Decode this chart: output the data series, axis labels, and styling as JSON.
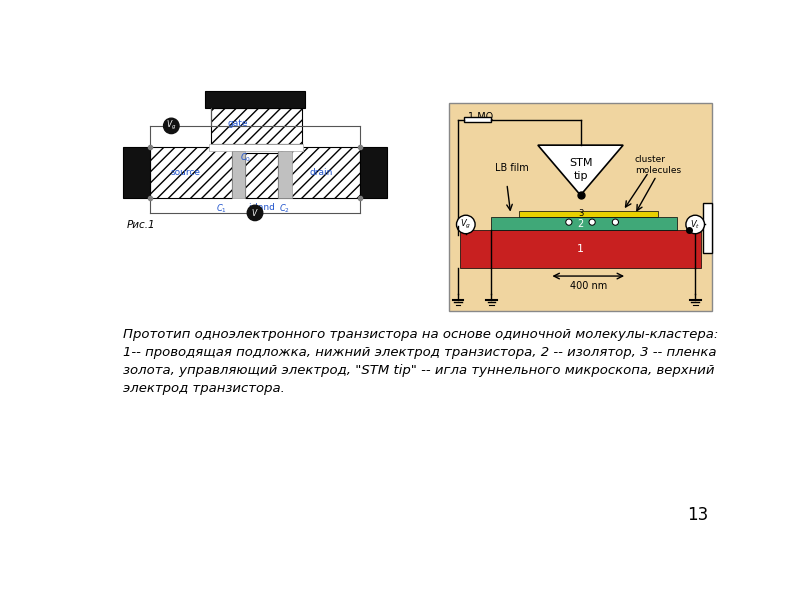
{
  "background_color": "#ffffff",
  "page_number": "13",
  "caption_text": "Прототип одноэлектронного транзистора на основе одиночной молекулы-кластера:\n1-- проводящая подложка, нижний электрод транзистора, 2 -- изолятор, 3 -- пленка\nзолота, управляющий электрод, \"STM tip\" -- игла туннельного микроскопа, верхний\nэлектрод транзистора.",
  "caption_fontsize": 9.5,
  "caption_color": "#000000",
  "caption_style": "italic",
  "fig1_label": "Рис.1",
  "blue_text_color": "#2255cc",
  "right_image_bg": "#f0d5a0",
  "wire_color": "#555555"
}
